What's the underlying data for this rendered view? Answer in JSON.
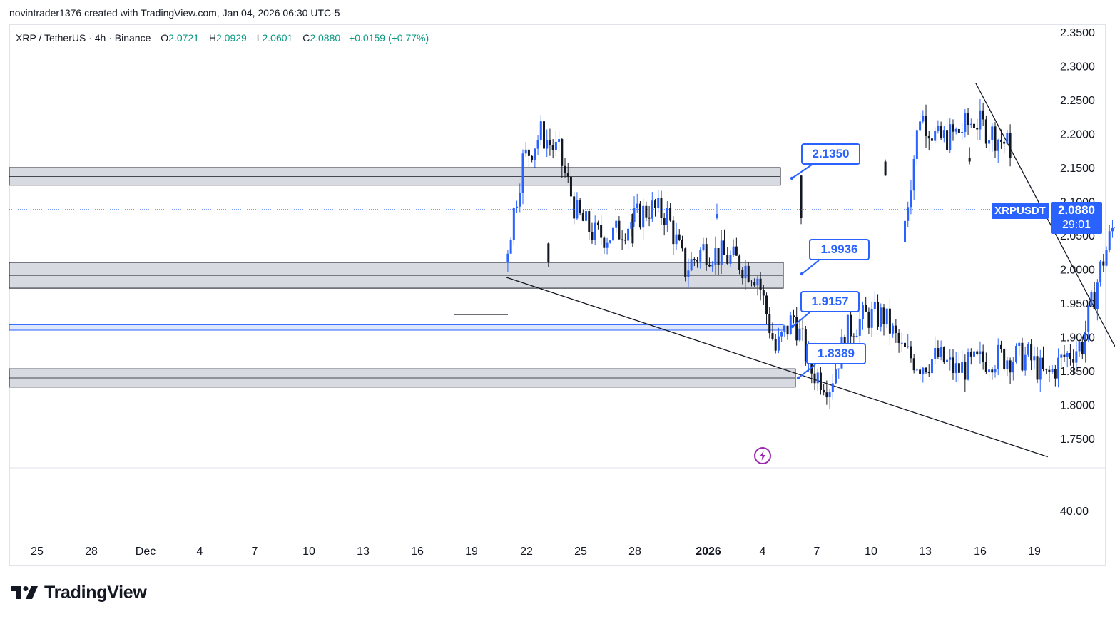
{
  "header": {
    "credit": "novintrader1376 created with TradingView.com, Jan 04, 2026 06:30 UTC-5"
  },
  "legend": {
    "symbol": "XRP / TetherUS · 4h · Binance",
    "open_label": "O",
    "open": "2.0721",
    "high_label": "H",
    "high": "2.0929",
    "low_label": "L",
    "low": "2.0601",
    "close_label": "C",
    "close": "2.0880",
    "change": "+0.0159 (+0.77%)"
  },
  "price_tag": {
    "symbol": "XRPUSDT",
    "price": "2.0880",
    "countdown": "29:01"
  },
  "annotations": [
    {
      "label": "2.1350",
      "value": 2.135
    },
    {
      "label": "1.9936",
      "value": 1.9936
    },
    {
      "label": "1.9157",
      "value": 1.9157
    },
    {
      "label": "1.8389",
      "value": 1.8389
    }
  ],
  "indicator_pane": {
    "tick": "40.00"
  },
  "brand": {
    "name": "TradingView",
    "icon": "tradingview-logo-icon"
  },
  "alert_icon": "lightning-icon",
  "colors": {
    "up": "#2962ff",
    "down": "#131722",
    "accent": "#2962ff",
    "zone": "#d1d4dc",
    "blue_zone": "#c9d7fb"
  },
  "chart_data": {
    "type": "candlestick",
    "title": "",
    "xlabel": "",
    "ylabel": "",
    "ylim": [
      1.7175,
      2.3675
    ],
    "y_ticks": [
      "2.3500",
      "2.3000",
      "2.2500",
      "2.2000",
      "2.1500",
      "2.1000",
      "2.0500",
      "2.0000",
      "1.9500",
      "1.9000",
      "1.8500",
      "1.8000",
      "1.7500"
    ],
    "x_ticks": [
      "25",
      "28",
      "Dec",
      "4",
      "7",
      "10",
      "13",
      "16",
      "19",
      "22",
      "25",
      "28",
      "2026",
      "4",
      "7",
      "10",
      "13",
      "16",
      "19"
    ],
    "grid": false,
    "last_price": 2.088,
    "zones": [
      {
        "kind": "resistance",
        "from": 2.124,
        "to": 2.15
      },
      {
        "kind": "support",
        "from": 1.972,
        "to": 2.01
      },
      {
        "kind": "support",
        "from": 1.91,
        "to": 1.918
      },
      {
        "kind": "support",
        "from": 1.826,
        "to": 1.853
      }
    ],
    "trendlines": [
      {
        "name": "upper-channel",
        "from": [
          "Nov 28",
          2.275
        ],
        "to": [
          "Jan 4",
          1.872
        ]
      },
      {
        "name": "lower-channel",
        "from": [
          "Dec 1",
          1.988
        ],
        "to": [
          "Dec 31",
          1.723
        ]
      }
    ],
    "price_path": [
      {
        "x": "Nov 24",
        "p": 2.04
      },
      {
        "x": "Nov 25",
        "p": 2.23
      },
      {
        "x": "Nov 26",
        "p": 2.19
      },
      {
        "x": "Nov 27",
        "p": 2.2
      },
      {
        "x": "Nov 28",
        "p": 2.22
      },
      {
        "x": "Nov 29",
        "p": 2.2
      },
      {
        "x": "Nov 30",
        "p": 2.18
      },
      {
        "x": "Dec 1",
        "p": 2.01
      },
      {
        "x": "Dec 2",
        "p": 2.16
      },
      {
        "x": "Dec 3",
        "p": 2.2
      },
      {
        "x": "Dec 4",
        "p": 2.17
      },
      {
        "x": "Dec 5",
        "p": 2.08
      },
      {
        "x": "Dec 6",
        "p": 2.05
      },
      {
        "x": "Dec 7",
        "p": 2.05
      },
      {
        "x": "Dec 8",
        "p": 2.07
      },
      {
        "x": "Dec 9",
        "p": 2.09
      },
      {
        "x": "Dec 10",
        "p": 2.08
      },
      {
        "x": "Dec 11",
        "p": 2.0
      },
      {
        "x": "Dec 12",
        "p": 2.03
      },
      {
        "x": "Dec 13",
        "p": 2.02
      },
      {
        "x": "Dec 14",
        "p": 2.01
      },
      {
        "x": "Dec 15",
        "p": 1.99
      },
      {
        "x": "Dec 16",
        "p": 1.88
      },
      {
        "x": "Dec 17",
        "p": 1.93
      },
      {
        "x": "Dec 18",
        "p": 1.85
      },
      {
        "x": "Dec 19",
        "p": 1.83
      },
      {
        "x": "Dec 20",
        "p": 1.91
      },
      {
        "x": "Dec 21",
        "p": 1.93
      },
      {
        "x": "Dec 22",
        "p": 1.93
      },
      {
        "x": "Dec 23",
        "p": 1.88
      },
      {
        "x": "Dec 24",
        "p": 1.86
      },
      {
        "x": "Dec 25",
        "p": 1.87
      },
      {
        "x": "Dec 26",
        "p": 1.85
      },
      {
        "x": "Dec 27",
        "p": 1.86
      },
      {
        "x": "Dec 28",
        "p": 1.87
      },
      {
        "x": "Dec 29",
        "p": 1.87
      },
      {
        "x": "Dec 30",
        "p": 1.87
      },
      {
        "x": "Dec 31",
        "p": 1.84
      },
      {
        "x": "Jan 1",
        "p": 1.87
      },
      {
        "x": "Jan 2",
        "p": 1.89
      },
      {
        "x": "Jan 3",
        "p": 2.0
      },
      {
        "x": "Jan 4",
        "p": 2.088
      }
    ]
  }
}
